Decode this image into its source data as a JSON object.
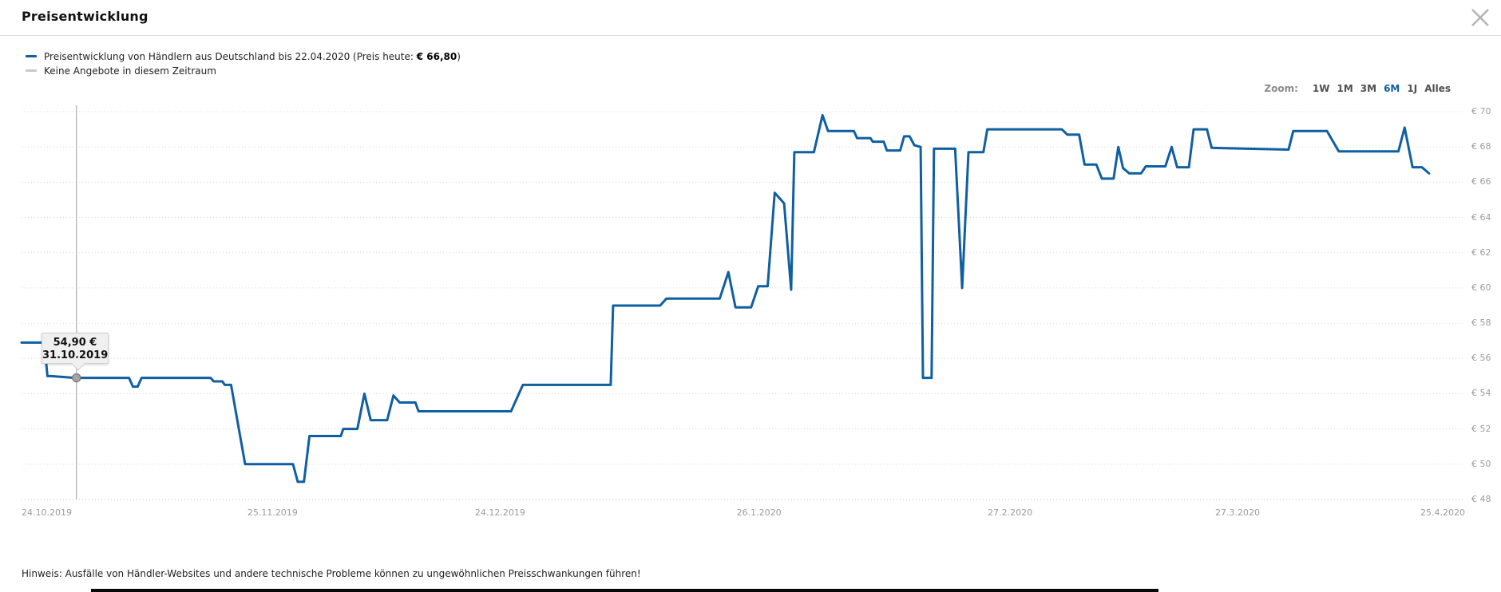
{
  "header": {
    "title": "Preisentwicklung"
  },
  "legend": {
    "series1": {
      "color": "#0f5fa1",
      "text_prefix": "Preisentwicklung von Händlern aus Deutschland bis 22.04.2020 (Preis heute: ",
      "price_bold": "€ 66,80",
      "text_suffix": ")"
    },
    "series2": {
      "color": "#c9c9c9",
      "label": "Keine Angebote in diesem Zeitraum"
    }
  },
  "zoom_controls": {
    "label": "Zoom:",
    "active_color": "#0f5fa1",
    "options": [
      {
        "label": "1W",
        "active": false
      },
      {
        "label": "1M",
        "active": false
      },
      {
        "label": "3M",
        "active": false
      },
      {
        "label": "6M",
        "active": true
      },
      {
        "label": "1J",
        "active": false
      },
      {
        "label": "Alles",
        "active": false
      }
    ]
  },
  "tooltip": {
    "price": "54,90 €",
    "date": "31.10.2019",
    "value": 54.9,
    "day_offset": 7
  },
  "footer_note": "Hinweis: Ausfälle von Händler-Websites und andere technische Probleme können zu ungewöhnlichen Preisschwankungen führen!",
  "chart_data": {
    "type": "line",
    "title": "Preisentwicklung",
    "series_name": "Preisentwicklung von Händlern aus Deutschland",
    "line_color": "#0f5fa1",
    "no_offers_color": "#c9c9c9",
    "grid": true,
    "legend_position": "top-left",
    "ylim": [
      48,
      70
    ],
    "x_total_days": 184,
    "x_start_date": "24.10.2019",
    "x_end_date": "25.4.2020",
    "y_ticks": [
      {
        "label": "€ 70",
        "value": 70
      },
      {
        "label": "€ 68",
        "value": 68
      },
      {
        "label": "€ 66",
        "value": 66
      },
      {
        "label": "€ 64",
        "value": 64
      },
      {
        "label": "€ 62",
        "value": 62
      },
      {
        "label": "€ 60",
        "value": 60
      },
      {
        "label": "€ 58",
        "value": 58
      },
      {
        "label": "€ 56",
        "value": 56
      },
      {
        "label": "€ 54",
        "value": 54
      },
      {
        "label": "€ 52",
        "value": 52
      },
      {
        "label": "€ 50",
        "value": 50
      },
      {
        "label": "€ 48",
        "value": 48
      }
    ],
    "x_ticks": [
      {
        "label": "24.10.2019",
        "day": 0,
        "align": "left"
      },
      {
        "label": "25.11.2019",
        "day": 32,
        "align": "center"
      },
      {
        "label": "24.12.2019",
        "day": 61,
        "align": "center"
      },
      {
        "label": "26.1.2020",
        "day": 94,
        "align": "center"
      },
      {
        "label": "27.2.2020",
        "day": 126,
        "align": "center"
      },
      {
        "label": "27.3.2020",
        "day": 155,
        "align": "center"
      },
      {
        "label": "25.4.2020",
        "day": 184,
        "align": "right"
      }
    ],
    "points": [
      [
        0,
        56.9
      ],
      [
        2.9,
        56.9
      ],
      [
        3.3,
        55.0
      ],
      [
        3.8,
        55.0
      ],
      [
        6.8,
        54.9
      ],
      [
        13.7,
        54.9
      ],
      [
        14.2,
        54.4
      ],
      [
        14.8,
        54.4
      ],
      [
        15.3,
        54.9
      ],
      [
        24.1,
        54.9
      ],
      [
        24.5,
        54.7
      ],
      [
        25.6,
        54.7
      ],
      [
        25.9,
        54.5
      ],
      [
        26.7,
        54.5
      ],
      [
        28.5,
        50.0
      ],
      [
        34.6,
        50.0
      ],
      [
        35.2,
        49.0
      ],
      [
        36.0,
        49.0
      ],
      [
        36.7,
        51.6
      ],
      [
        40.7,
        51.6
      ],
      [
        41.0,
        52.0
      ],
      [
        42.8,
        52.0
      ],
      [
        43.7,
        54.0
      ],
      [
        44.5,
        52.5
      ],
      [
        46.6,
        52.5
      ],
      [
        47.4,
        53.9
      ],
      [
        48.2,
        53.5
      ],
      [
        50.2,
        53.5
      ],
      [
        50.6,
        53.0
      ],
      [
        62.4,
        53.0
      ],
      [
        63.9,
        54.5
      ],
      [
        75.1,
        54.5
      ],
      [
        75.4,
        59.0
      ],
      [
        81.4,
        59.0
      ],
      [
        82.2,
        59.4
      ],
      [
        89.0,
        59.4
      ],
      [
        90.1,
        60.9
      ],
      [
        91.0,
        58.9
      ],
      [
        93.0,
        58.9
      ],
      [
        93.9,
        60.1
      ],
      [
        95.1,
        60.1
      ],
      [
        96.0,
        65.4
      ],
      [
        97.2,
        64.8
      ],
      [
        98.1,
        59.9
      ],
      [
        98.5,
        67.7
      ],
      [
        101.0,
        67.7
      ],
      [
        102.1,
        69.8
      ],
      [
        102.8,
        68.9
      ],
      [
        106.1,
        68.9
      ],
      [
        106.5,
        68.5
      ],
      [
        108.2,
        68.5
      ],
      [
        108.5,
        68.3
      ],
      [
        109.9,
        68.3
      ],
      [
        110.3,
        67.8
      ],
      [
        112.0,
        67.8
      ],
      [
        112.5,
        68.6
      ],
      [
        113.2,
        68.6
      ],
      [
        113.8,
        68.1
      ],
      [
        114.6,
        68.0
      ],
      [
        114.9,
        54.9
      ],
      [
        116.0,
        54.9
      ],
      [
        116.3,
        67.9
      ],
      [
        119.0,
        67.9
      ],
      [
        119.9,
        60.0
      ],
      [
        120.7,
        67.7
      ],
      [
        122.6,
        67.7
      ],
      [
        123.1,
        69.0
      ],
      [
        132.6,
        69.0
      ],
      [
        133.3,
        68.7
      ],
      [
        134.8,
        68.7
      ],
      [
        135.5,
        67.0
      ],
      [
        137.0,
        67.0
      ],
      [
        137.7,
        66.2
      ],
      [
        139.2,
        66.2
      ],
      [
        139.8,
        68.0
      ],
      [
        140.4,
        66.8
      ],
      [
        141.2,
        66.5
      ],
      [
        142.7,
        66.5
      ],
      [
        143.3,
        66.9
      ],
      [
        145.8,
        66.9
      ],
      [
        146.6,
        68.0
      ],
      [
        147.3,
        66.85
      ],
      [
        148.8,
        66.85
      ],
      [
        149.4,
        69.0
      ],
      [
        151.1,
        69.0
      ],
      [
        151.7,
        67.95
      ],
      [
        161.5,
        67.85
      ],
      [
        162.1,
        68.9
      ],
      [
        166.4,
        68.9
      ],
      [
        167.9,
        67.75
      ],
      [
        175.5,
        67.75
      ],
      [
        176.3,
        69.1
      ],
      [
        177.3,
        66.85
      ],
      [
        178.5,
        66.85
      ],
      [
        179.4,
        66.5
      ]
    ]
  }
}
